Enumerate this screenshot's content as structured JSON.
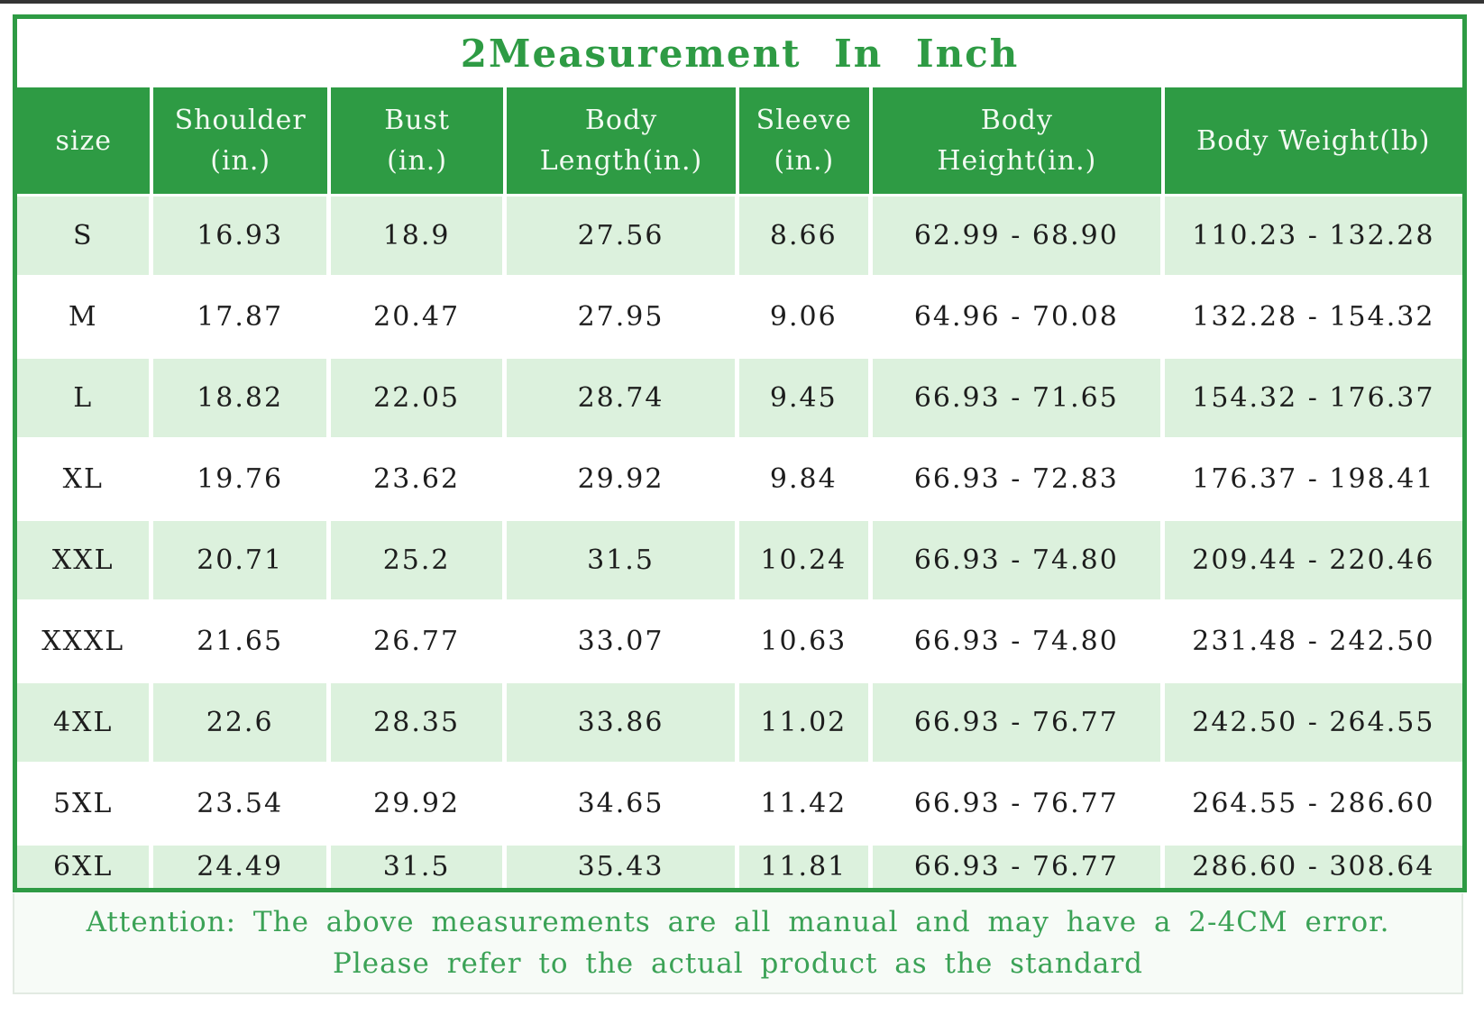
{
  "title": "2Measurement In Inch",
  "table": {
    "columns": [
      {
        "line1": "size",
        "line2": ""
      },
      {
        "line1": "Shoulder",
        "line2": "(in.)"
      },
      {
        "line1": "Bust",
        "line2": "(in.)"
      },
      {
        "line1": "Body",
        "line2": "Length(in.)"
      },
      {
        "line1": "Sleeve",
        "line2": "(in.)"
      },
      {
        "line1": "Body",
        "line2": "Height(in.)"
      },
      {
        "line1": "Body Weight(lb)",
        "line2": ""
      }
    ],
    "rows": [
      [
        "S",
        "16.93",
        "18.9",
        "27.56",
        "8.66",
        "62.99 - 68.90",
        "110.23 - 132.28"
      ],
      [
        "M",
        "17.87",
        "20.47",
        "27.95",
        "9.06",
        "64.96 - 70.08",
        "132.28 - 154.32"
      ],
      [
        "L",
        "18.82",
        "22.05",
        "28.74",
        "9.45",
        "66.93 - 71.65",
        "154.32 - 176.37"
      ],
      [
        "XL",
        "19.76",
        "23.62",
        "29.92",
        "9.84",
        "66.93 - 72.83",
        "176.37 - 198.41"
      ],
      [
        "XXL",
        "20.71",
        "25.2",
        "31.5",
        "10.24",
        "66.93 - 74.80",
        "209.44 - 220.46"
      ],
      [
        "XXXL",
        "21.65",
        "26.77",
        "33.07",
        "10.63",
        "66.93 - 74.80",
        "231.48 - 242.50"
      ],
      [
        "4XL",
        "22.6",
        "28.35",
        "33.86",
        "11.02",
        "66.93 - 76.77",
        "242.50 - 264.55"
      ],
      [
        "5XL",
        "23.54",
        "29.92",
        "34.65",
        "11.42",
        "66.93 - 76.77",
        "264.55 - 286.60"
      ],
      [
        "6XL",
        "24.49",
        "31.5",
        "35.43",
        "11.81",
        "66.93 - 76.77",
        "286.60 - 308.64"
      ]
    ]
  },
  "footer": {
    "line1": "Attention: The above measurements are all manual and may have a 2-4CM error.",
    "line2": "Please refer to the actual product as the standard"
  },
  "colors": {
    "header_green": "#2e9b44",
    "row_light_green": "#dcf1dd",
    "title_text_green": "#2e9b44",
    "footer_text_green": "#3ba256",
    "data_text": "#1d1d1d",
    "photo_edge_dark": "#343434"
  }
}
